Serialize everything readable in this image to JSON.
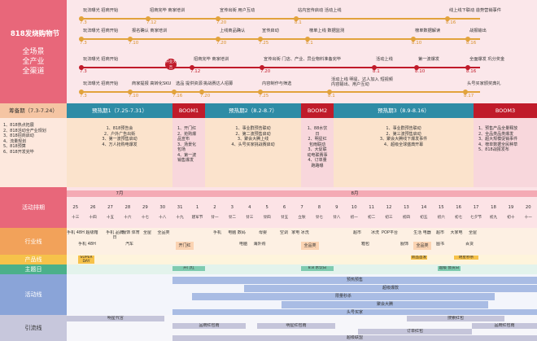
{
  "title": {
    "main": "818发烧购物节",
    "sub1": "全场景",
    "sub2": "全产业",
    "sub3": "全渠道"
  },
  "timelines": [
    {
      "items": [
        {
          "text": "玩法曝光 招商开始",
          "date": "7.3"
        },
        {
          "text": "招商完毕 商家培训",
          "date": "7.12"
        },
        {
          "text": "宣传出街 用户互动",
          "date": "7.20"
        },
        {
          "text": "站内宣传启动 活动上线",
          "date": "8.1"
        },
        {
          "text": "线上线下联动 造势营销事件",
          "date": "8.16"
        }
      ]
    },
    {
      "items": [
        {
          "text": "玩法曝光 招商开始",
          "date": "7.3"
        },
        {
          "text": "报名确认 商家培训",
          "date": "7.10"
        },
        {
          "text": "上线商品确认",
          "date": "7.20"
        },
        {
          "text": "宣传启动",
          "date": "7.25"
        },
        {
          "text": "榜单上线 数据监测",
          "date": "8.1"
        },
        {
          "text": "榜单数据解读",
          "date": "8.10"
        },
        {
          "text": "战报输出",
          "date": "8.16"
        }
      ]
    },
    {
      "items": [
        {
          "text": "玩法曝光 招商开始",
          "date": "7.3"
        },
        {
          "text": "开业大吉",
          "date": ""
        },
        {
          "text": "招商完毕 商家培训",
          "date": "7.12"
        },
        {
          "text": "宣传出街 门店、产业、异业物料准备完毕",
          "date": "7.20"
        },
        {
          "text": "活动上线",
          "date": "8.1"
        },
        {
          "text": "第一波爆发",
          "date": "8.10"
        },
        {
          "text": "全面爆发 巩分奖金",
          "date": "8.16"
        }
      ]
    },
    {
      "items": [
        {
          "text": "玩法曝光 招商开始",
          "date": "7.3"
        },
        {
          "text": "商家提报 高转化SKU",
          "date": "7.10"
        },
        {
          "text": "选品 提供资源",
          "date": "7.16"
        },
        {
          "text": "挑战赛达人招募",
          "date": "7.20"
        },
        {
          "text": "内容制作与筛选",
          "date": "7.25"
        },
        {
          "text": "活动上线 明星、达人加入 短视频内容输出、用户互动",
          "date": "8.1"
        },
        {
          "text": "头号买家颁奖典礼",
          "date": "8.17"
        }
      ]
    }
  ],
  "phases": [
    {
      "label": "筹备期（7.3-7.24）",
      "items": [
        "1、818热点拓展",
        "2、818活动全产业规划",
        "3、818招商启动",
        "4、流量规划",
        "5、818预算",
        "6、818开发完毕"
      ]
    },
    {
      "label": "预热期1（7.25-7.31）",
      "items": [
        "1、818预告会",
        "2、户外广告出街",
        "3、第一波预售启动",
        "4、万人抢购电爆发"
      ]
    },
    {
      "label": "BOOM1",
      "items": [
        "1、开门红",
        "2、抢购爆品宣布",
        "3、场景化包场",
        "4、第一波销售爆发"
      ]
    },
    {
      "label": "预热期2（8.2-8.7）",
      "items": [
        "1、事业群预告联动",
        "2、第二波预售启动",
        "3、聚会大腾上线",
        "4、头号买家挑战赛启动"
      ]
    },
    {
      "label": "BOOM2",
      "items": [
        "1、88水饮日",
        "2、明星红包雨联动",
        "3、大促联动电联赛事",
        "4、订单量跑路曝"
      ]
    },
    {
      "label": "预热期3（8.9-8.16）",
      "items": [
        "1、事业群预告联动",
        "2、第三波预售启动",
        "3、聚会大腾线下爆发事件",
        "4、超级全球盛典开幕"
      ]
    },
    {
      "label": "BOOM3",
      "items": [
        "1、预售产品全量释放",
        "2、全品类品类爆发",
        "3、超大规模促销事件",
        "4、榜单数据全民种草",
        "5、818战报发布"
      ]
    }
  ],
  "schedule": {
    "label": "活动排期",
    "month_july": "7月",
    "month_aug": "8月",
    "days": [
      "25",
      "26",
      "27",
      "28",
      "29",
      "30",
      "31",
      "1",
      "2",
      "3",
      "4",
      "5",
      "6",
      "7",
      "8",
      "9",
      "10",
      "11",
      "12",
      "13",
      "14",
      "15",
      "16",
      "17",
      "18",
      "19",
      "20"
    ],
    "lunar": [
      "十三",
      "十四",
      "十五",
      "十六",
      "十七",
      "十八",
      "十九",
      "建军节",
      "廿一",
      "廿二",
      "廿三",
      "廿四",
      "廿五",
      "立秋",
      "廿七",
      "廿八",
      "初一",
      "初二",
      "初三",
      "初四",
      "初五",
      "初六",
      "初七",
      "七夕节",
      "初九",
      "初十",
      "十一"
    ]
  },
  "rows": {
    "industry": "行业线",
    "product": "产品线",
    "theme": "主题日",
    "activity": "活动线",
    "traffic": "引流线"
  },
  "industry_cells": [
    "手机 48H",
    "超级箱",
    "手机 品牌日",
    "服饰 体育",
    "全屋",
    "全品类",
    "开门红",
    "手机",
    "电脑 数码",
    "母婴",
    "空调",
    "家电 冰洗",
    "全品类",
    "超市",
    "冰洗",
    "POP平台",
    "生活 电器",
    "全品类",
    "超市",
    "大家电",
    "全屋",
    "手机 48H",
    "汽车",
    "电脑",
    "海外购",
    "箱包",
    "服饰",
    "图书",
    "百货"
  ],
  "product_cells": [
    "SUPER DAY",
    "新品首发",
    "明星秒杀"
  ],
  "theme_cells": [
    "开门红",
    "8.8 水饮日",
    "超级 会员日"
  ],
  "activity_bars": [
    "预热预售",
    "超级爆款",
    "限量秒杀",
    "聚会大腾",
    "头号买家"
  ],
  "traffic_bars": [
    "明星代言",
    "品牌红包雨",
    "明星红包雨",
    "品牌红包雨",
    "订单红包",
    "搜索红包",
    "超级联盟"
  ]
}
